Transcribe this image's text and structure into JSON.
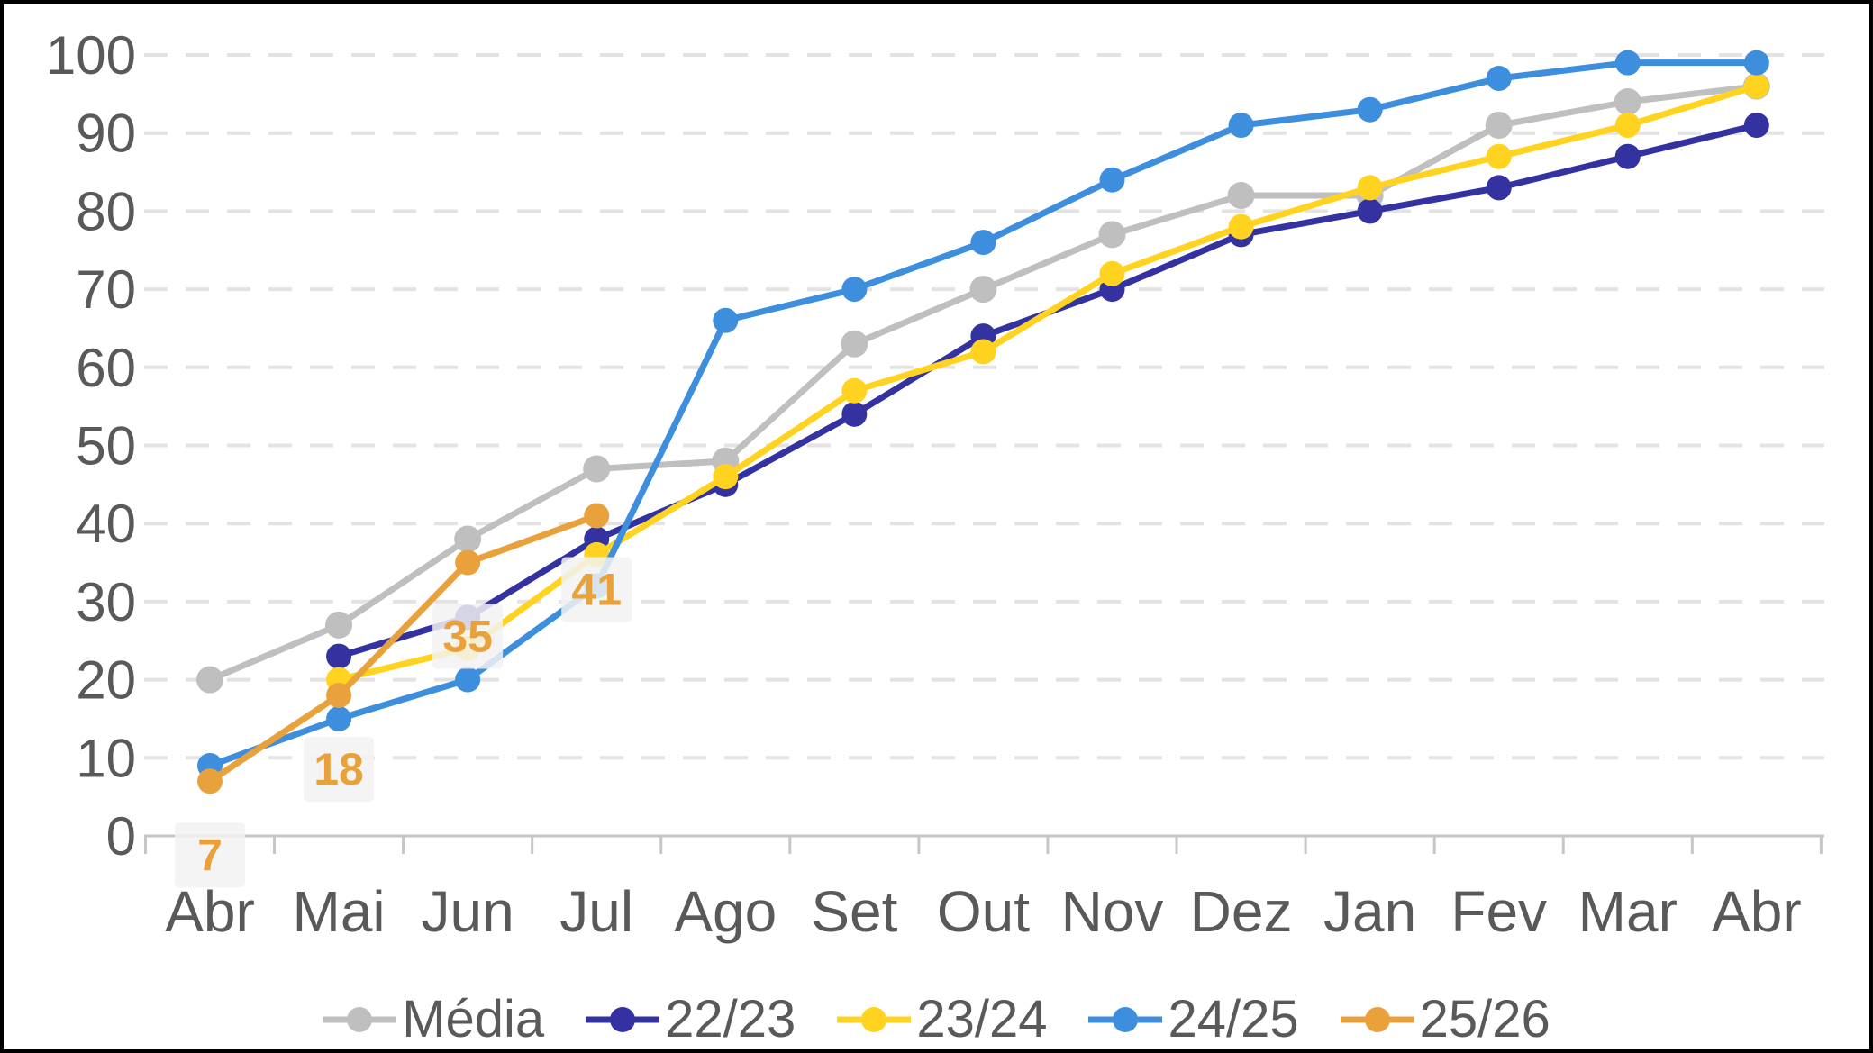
{
  "chart_data": {
    "type": "line",
    "title": "",
    "categories": [
      "Abr",
      "Mai",
      "Jun",
      "Jul",
      "Ago",
      "Set",
      "Out",
      "Nov",
      "Dez",
      "Jan",
      "Fev",
      "Mar",
      "Abr"
    ],
    "xlabel": "",
    "ylabel": "",
    "ylim": [
      0,
      100
    ],
    "y_ticks": [
      0,
      10,
      20,
      30,
      40,
      50,
      60,
      70,
      80,
      90,
      100
    ],
    "grid": "horizontal-dashed",
    "legend_position": "bottom",
    "series": [
      {
        "name": "Média",
        "color": "#BFBFBF",
        "marker_radius": 15,
        "values": [
          20,
          27,
          38,
          47,
          48,
          63,
          70,
          77,
          82,
          82,
          91,
          94,
          96
        ]
      },
      {
        "name": "22/23",
        "color": "#3431A0",
        "marker_radius": 14,
        "values": [
          null,
          23,
          28,
          38,
          45,
          54,
          64,
          70,
          77,
          80,
          83,
          87,
          91
        ]
      },
      {
        "name": "23/24",
        "color": "#FFD320",
        "marker_radius": 14,
        "values": [
          null,
          20,
          24,
          36,
          46,
          57,
          62,
          72,
          78,
          83,
          87,
          91,
          96
        ]
      },
      {
        "name": "24/25",
        "color": "#3E8EDE",
        "marker_radius": 14,
        "values": [
          9,
          15,
          20,
          32,
          66,
          70,
          76,
          84,
          91,
          93,
          97,
          99,
          99
        ]
      },
      {
        "name": "25/26",
        "color": "#E9A23B",
        "marker_radius": 14,
        "show_labels": true,
        "values": [
          7,
          18,
          35,
          41,
          null,
          null,
          null,
          null,
          null,
          null,
          null,
          null,
          null
        ]
      }
    ],
    "point_label_style": {
      "text_color": "#E9A23B",
      "box_color": "#F2F2F2"
    },
    "axis_text_color": "#595959",
    "gridline_color": "#E3E3E3",
    "axisline_color": "#C6C6C6",
    "background_color": "#FFFFFF"
  }
}
